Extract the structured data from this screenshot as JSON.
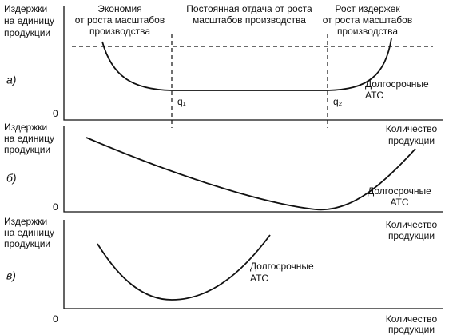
{
  "panels": [
    {
      "letter": "а)",
      "origin": "0",
      "y_label": [
        "Издержки",
        "на единицу",
        "продукции"
      ],
      "x_label": [
        "Количество",
        "продукции"
      ],
      "curve_label": [
        "Долгосрочные",
        "АТС"
      ],
      "regions": [
        {
          "lines": [
            "Экономия",
            "от роста масштабов",
            "производства"
          ]
        },
        {
          "lines": [
            "Постоянная отдача от роста",
            "масштабов производства"
          ]
        },
        {
          "lines": [
            "Рост издержек",
            "от роста масштабов",
            "производства"
          ]
        }
      ],
      "points": [
        "q₁",
        "q₂"
      ]
    },
    {
      "letter": "б)",
      "origin": "0",
      "y_label": [
        "Издержки",
        "на единицу",
        "продукции"
      ],
      "x_label": [
        "Количество",
        "продукции"
      ],
      "curve_label": [
        "Долгосрочные",
        "АТС"
      ]
    },
    {
      "letter": "в)",
      "origin": "0",
      "y_label": [
        "Издержки",
        "на единицу",
        "продукции"
      ],
      "x_label": [
        "Количество",
        "продукции"
      ],
      "curve_label": [
        "Долгосрочные",
        "АТС"
      ]
    }
  ]
}
